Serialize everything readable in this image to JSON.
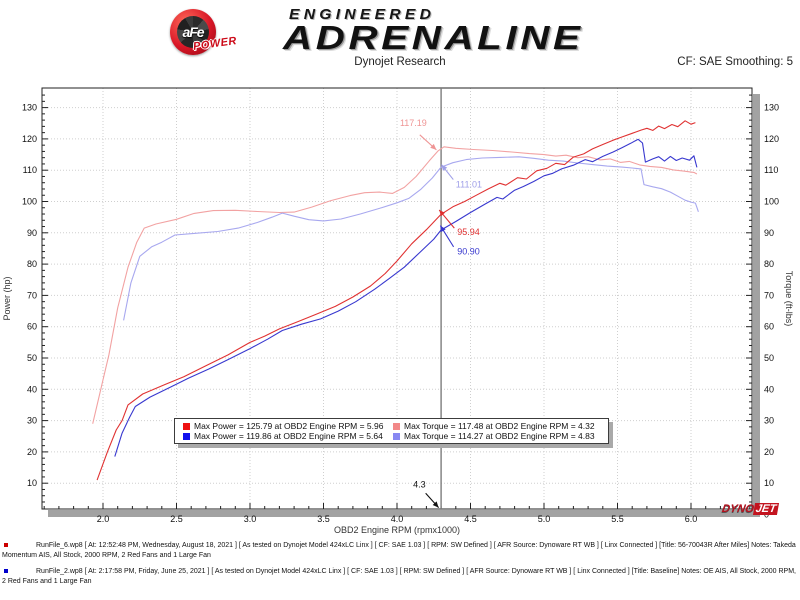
{
  "header": {
    "logo_text": "aFe",
    "logo_sub": "POWER",
    "brand_top": "ENGINEERED",
    "brand_main": "ADRENALINE",
    "title": "Dynojet Research",
    "cf_label": "CF: SAE Smoothing: 5"
  },
  "watermark": {
    "part1": "DYNO",
    "part2": "JET"
  },
  "chart_data": {
    "type": "line",
    "x_axis": {
      "label": "OBD2 Engine RPM (rpmx1000)",
      "tick_min": 2.0,
      "tick_max": 6.0,
      "major_step": 0.5,
      "minor_step": 0.1,
      "minor_min": 1.6,
      "minor_max": 6.4
    },
    "y_axis_left": {
      "label": "Power (hp)",
      "tick_min": 10,
      "tick_max": 130,
      "major_step": 10,
      "minor_step": 2
    },
    "y_axis_right": {
      "label": "Torque (ft-lbs)",
      "extra_bottom_label": "0",
      "extra_bottom_value": 0
    },
    "grid": {
      "color": "#cfcfcf",
      "style": "dotted"
    },
    "cursor": {
      "rpm": 4.3,
      "label": "4.3",
      "color": "#7d7d7d"
    },
    "series": [
      {
        "name": "power_after",
        "color": "#e03232",
        "points": [
          [
            1.96,
            11
          ],
          [
            2.03,
            20
          ],
          [
            2.09,
            27
          ],
          [
            2.13,
            30
          ],
          [
            2.17,
            35
          ],
          [
            2.27,
            38.5
          ],
          [
            2.42,
            41.5
          ],
          [
            2.55,
            44
          ],
          [
            2.7,
            47.5
          ],
          [
            2.85,
            51
          ],
          [
            3.0,
            55
          ],
          [
            3.1,
            57
          ],
          [
            3.2,
            59.3
          ],
          [
            3.32,
            61.5
          ],
          [
            3.45,
            64
          ],
          [
            3.58,
            66.5
          ],
          [
            3.7,
            69.5
          ],
          [
            3.82,
            73
          ],
          [
            3.92,
            77
          ],
          [
            4.0,
            81
          ],
          [
            4.1,
            86.5
          ],
          [
            4.2,
            91
          ],
          [
            4.3,
            95.9
          ],
          [
            4.38,
            98.3
          ],
          [
            4.46,
            100
          ],
          [
            4.54,
            102
          ],
          [
            4.62,
            104
          ],
          [
            4.7,
            105.8
          ],
          [
            4.74,
            105.2
          ],
          [
            4.82,
            107.6
          ],
          [
            4.88,
            107.2
          ],
          [
            4.95,
            109.8
          ],
          [
            5.02,
            110.6
          ],
          [
            5.08,
            112.2
          ],
          [
            5.14,
            111.8
          ],
          [
            5.2,
            114.2
          ],
          [
            5.27,
            115.2
          ],
          [
            5.33,
            116.8
          ],
          [
            5.4,
            118.2
          ],
          [
            5.47,
            119.6
          ],
          [
            5.53,
            120.6
          ],
          [
            5.6,
            121.8
          ],
          [
            5.66,
            122.8
          ],
          [
            5.7,
            123.4
          ],
          [
            5.74,
            122.7
          ],
          [
            5.78,
            124.1
          ],
          [
            5.82,
            123.3
          ],
          [
            5.87,
            124.6
          ],
          [
            5.91,
            123.9
          ],
          [
            5.96,
            125.79
          ],
          [
            6.0,
            124.7
          ],
          [
            6.03,
            125.2
          ]
        ]
      },
      {
        "name": "power_baseline",
        "color": "#3838cf",
        "points": [
          [
            2.08,
            18.5
          ],
          [
            2.13,
            26
          ],
          [
            2.18,
            31
          ],
          [
            2.22,
            34.5
          ],
          [
            2.32,
            37.5
          ],
          [
            2.45,
            40.5
          ],
          [
            2.58,
            43.5
          ],
          [
            2.72,
            46.5
          ],
          [
            2.85,
            49.5
          ],
          [
            3.0,
            53
          ],
          [
            3.12,
            56
          ],
          [
            3.22,
            58.8
          ],
          [
            3.35,
            60.8
          ],
          [
            3.48,
            62.5
          ],
          [
            3.6,
            65
          ],
          [
            3.72,
            68
          ],
          [
            3.85,
            72
          ],
          [
            3.95,
            75.5
          ],
          [
            4.05,
            79
          ],
          [
            4.15,
            83.5
          ],
          [
            4.25,
            88
          ],
          [
            4.3,
            90.9
          ],
          [
            4.4,
            93.6
          ],
          [
            4.5,
            96.5
          ],
          [
            4.6,
            99.2
          ],
          [
            4.68,
            101.3
          ],
          [
            4.72,
            100.8
          ],
          [
            4.8,
            103.6
          ],
          [
            4.86,
            104.8
          ],
          [
            4.93,
            106.4
          ],
          [
            5.0,
            108.2
          ],
          [
            5.06,
            109
          ],
          [
            5.12,
            110.4
          ],
          [
            5.2,
            111.6
          ],
          [
            5.28,
            113.4
          ],
          [
            5.33,
            112.7
          ],
          [
            5.4,
            114.4
          ],
          [
            5.47,
            115.8
          ],
          [
            5.53,
            117.2
          ],
          [
            5.59,
            118.6
          ],
          [
            5.64,
            119.86
          ],
          [
            5.67,
            118.7
          ],
          [
            5.69,
            112.6
          ],
          [
            5.74,
            113.6
          ],
          [
            5.78,
            114.3
          ],
          [
            5.82,
            112.9
          ],
          [
            5.86,
            114.4
          ],
          [
            5.9,
            113.1
          ],
          [
            5.94,
            113.9
          ],
          [
            5.99,
            113.2
          ],
          [
            6.02,
            114.6
          ],
          [
            6.04,
            110.9
          ]
        ]
      },
      {
        "name": "torque_after",
        "color": "#f2a2a2",
        "points": [
          [
            1.93,
            29
          ],
          [
            1.99,
            41
          ],
          [
            2.04,
            51
          ],
          [
            2.1,
            66
          ],
          [
            2.17,
            79
          ],
          [
            2.23,
            87
          ],
          [
            2.28,
            91.5
          ],
          [
            2.36,
            92.8
          ],
          [
            2.5,
            94.3
          ],
          [
            2.62,
            96.2
          ],
          [
            2.75,
            97.1
          ],
          [
            2.9,
            97.2
          ],
          [
            3.05,
            96.8
          ],
          [
            3.2,
            96.5
          ],
          [
            3.3,
            96.6
          ],
          [
            3.42,
            98.2
          ],
          [
            3.55,
            100.3
          ],
          [
            3.68,
            101.9
          ],
          [
            3.78,
            102.8
          ],
          [
            3.88,
            103
          ],
          [
            3.97,
            102.6
          ],
          [
            4.05,
            104.5
          ],
          [
            4.13,
            108
          ],
          [
            4.22,
            113
          ],
          [
            4.28,
            116.2
          ],
          [
            4.32,
            117.48
          ],
          [
            4.4,
            117
          ],
          [
            4.52,
            116.6
          ],
          [
            4.65,
            116.3
          ],
          [
            4.78,
            115.8
          ],
          [
            4.9,
            115.3
          ],
          [
            5.0,
            115
          ],
          [
            5.08,
            114.5
          ],
          [
            5.15,
            114.8
          ],
          [
            5.23,
            114
          ],
          [
            5.3,
            114.3
          ],
          [
            5.38,
            113.3
          ],
          [
            5.45,
            113.6
          ],
          [
            5.52,
            112.5
          ],
          [
            5.58,
            112.8
          ],
          [
            5.65,
            111.7
          ],
          [
            5.72,
            111.2
          ],
          [
            5.8,
            110.9
          ],
          [
            5.88,
            110.1
          ],
          [
            5.95,
            109.7
          ],
          [
            6.02,
            109.3
          ],
          [
            6.04,
            108.8
          ]
        ]
      },
      {
        "name": "torque_baseline",
        "color": "#a8a8ef",
        "points": [
          [
            2.14,
            62
          ],
          [
            2.19,
            74
          ],
          [
            2.25,
            82.5
          ],
          [
            2.33,
            85.5
          ],
          [
            2.4,
            87
          ],
          [
            2.49,
            89.3
          ],
          [
            2.62,
            89.8
          ],
          [
            2.78,
            90.4
          ],
          [
            2.92,
            91.5
          ],
          [
            3.05,
            93.3
          ],
          [
            3.15,
            95
          ],
          [
            3.22,
            96.3
          ],
          [
            3.3,
            95.3
          ],
          [
            3.4,
            94.2
          ],
          [
            3.5,
            93.8
          ],
          [
            3.62,
            94.4
          ],
          [
            3.75,
            96
          ],
          [
            3.88,
            97.8
          ],
          [
            4.0,
            99.6
          ],
          [
            4.08,
            101
          ],
          [
            4.16,
            103.8
          ],
          [
            4.24,
            107.5
          ],
          [
            4.3,
            111
          ],
          [
            4.38,
            112.4
          ],
          [
            4.47,
            113.4
          ],
          [
            4.58,
            113.9
          ],
          [
            4.7,
            114.1
          ],
          [
            4.83,
            114.27
          ],
          [
            4.93,
            113.8
          ],
          [
            5.03,
            113.2
          ],
          [
            5.13,
            112.9
          ],
          [
            5.23,
            112.3
          ],
          [
            5.33,
            111.8
          ],
          [
            5.43,
            111.3
          ],
          [
            5.53,
            111
          ],
          [
            5.6,
            110.7
          ],
          [
            5.66,
            110.4
          ],
          [
            5.68,
            105.4
          ],
          [
            5.74,
            104.7
          ],
          [
            5.8,
            104.1
          ],
          [
            5.86,
            103
          ],
          [
            5.91,
            101.7
          ],
          [
            5.96,
            100.4
          ],
          [
            6.0,
            99.8
          ],
          [
            6.03,
            99.5
          ],
          [
            6.05,
            96.7
          ]
        ]
      }
    ],
    "annotations": [
      {
        "text": "117.19",
        "color": "#ef9595",
        "text_rpm": 4.02,
        "text_val": 124.2,
        "arrow_from": [
          4.155,
          121.3
        ],
        "arrow_to": [
          4.268,
          116.5
        ]
      },
      {
        "text": "111.01",
        "color": "#9f9fe8",
        "text_rpm": 4.4,
        "text_val": 104.5,
        "arrow_from": [
          4.383,
          107.0
        ],
        "arrow_to": [
          4.302,
          111.8
        ]
      },
      {
        "text": "95.94",
        "color": "#e03030",
        "text_rpm": 4.41,
        "text_val": 89.3,
        "arrow_from": [
          4.39,
          91.5
        ],
        "arrow_to": [
          4.287,
          97.3
        ]
      },
      {
        "text": "90.90",
        "color": "#3838cf",
        "text_rpm": 4.41,
        "text_val": 83.0,
        "arrow_from": [
          4.385,
          85.5
        ],
        "arrow_to": [
          4.295,
          92.3
        ]
      },
      {
        "text": "4.3",
        "color": "#111111",
        "text_rpm": 4.11,
        "text_val": 8.6,
        "arrow_from": [
          4.195,
          6.8
        ],
        "arrow_to": [
          4.283,
          2.2
        ]
      }
    ],
    "legend": [
      {
        "swatch": "#ee1111",
        "text": "Max Power = 125.79 at OBD2 Engine RPM = 5.96"
      },
      {
        "swatch": "#f28888",
        "text": "Max Torque = 117.48 at OBD2 Engine RPM = 4.32"
      },
      {
        "swatch": "#1111ee",
        "text": "Max Power = 119.86 at OBD2 Engine RPM = 5.64"
      },
      {
        "swatch": "#8888f2",
        "text": "Max Torque = 114.27 at OBD2 Engine RPM = 4.83"
      }
    ]
  },
  "footer": {
    "runs": [
      {
        "bullet_color": "#cc0000",
        "text": "RunFile_6.wp8 [ At: 12:52:48 PM, Wednesday, August 18, 2021 ] [ As tested on Dynojet Model 424xLC Linx ] [ CF: SAE 1.03 ] [ RPM: SW Defined ] [ AFR Source: Dynoware RT WB ] [ Linx Connected ] [Title:  56-70043R After Miles]  Notes: Takeda Momentum AIS, All Stock, 2000 RPM, 2 Red Fans and 1 Large Fan"
      },
      {
        "bullet_color": "#0000cc",
        "text": "RunFile_2.wp8 [ At: 2:17:58 PM, Friday, June 25, 2021 ] [ As tested on Dynojet Model 424xLC Linx ] [ CF: SAE 1.03 ] [ RPM: SW Defined ] [ AFR Source: Dynoware RT WB ] [ Linx Connected ] [Title: Baseline]  Notes: OE AIS, All Stock, 2000 RPM, 2 Red Fans and 1 Large Fan"
      }
    ]
  }
}
